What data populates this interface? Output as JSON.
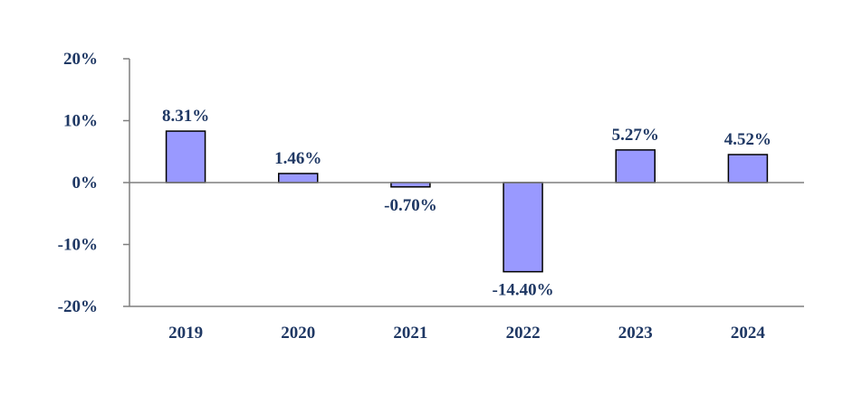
{
  "chart_data": {
    "type": "bar",
    "categories": [
      "2019",
      "2020",
      "2021",
      "2022",
      "2023",
      "2024"
    ],
    "values": [
      8.31,
      1.46,
      -0.7,
      -14.4,
      5.27,
      4.52
    ],
    "value_labels": [
      "8.31%",
      "1.46%",
      "-0.70%",
      "-14.40%",
      "5.27%",
      "4.52%"
    ],
    "yticks": [
      20,
      10,
      0,
      -10,
      -20
    ],
    "ytick_labels": [
      "20%",
      "10%",
      "0%",
      "-10%",
      "-20%"
    ],
    "ylim": [
      -20,
      20
    ],
    "title": "",
    "xlabel": "",
    "ylabel": "",
    "grid": false,
    "legend": "none",
    "colors": {
      "bar_fill": "#9999ff",
      "bar_stroke": "#000000",
      "axis": "#7f7f7f",
      "text": "#1f3864"
    }
  }
}
